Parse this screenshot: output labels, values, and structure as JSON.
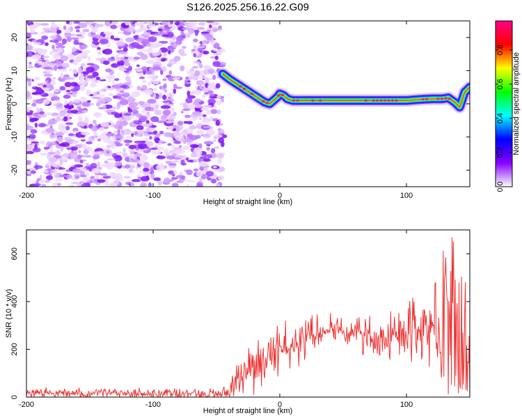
{
  "title": "S126.2025.256.16.22.G09",
  "chart_data": [
    {
      "type": "heatmap",
      "title": "S126.2025.256.16.22.G09",
      "xlabel": "Height of straight line (km)",
      "ylabel": "Frequency (Hz)",
      "xlim": [
        -200,
        150
      ],
      "ylim": [
        -25,
        25
      ],
      "x_ticks": [
        -200,
        -100,
        0,
        100
      ],
      "y_ticks": [
        -20,
        -10,
        0,
        10,
        20
      ],
      "noise_region_x": [
        -200,
        -45
      ],
      "ridge": {
        "x": [
          -45,
          -40,
          -36,
          -32,
          -28,
          -24,
          -20,
          -16,
          -12,
          -8,
          -5,
          -2,
          0,
          3,
          6,
          10,
          20,
          40,
          60,
          80,
          100,
          110,
          120,
          128,
          133,
          138,
          142,
          146,
          150
        ],
        "y": [
          9,
          7.5,
          6.5,
          5.5,
          4.5,
          3.5,
          2.5,
          1.5,
          0.5,
          0,
          1,
          2,
          3,
          2.5,
          1.5,
          1,
          1,
          1,
          1,
          1,
          1,
          1.3,
          1.5,
          1.5,
          1.8,
          0.5,
          -1,
          3.5,
          5
        ]
      },
      "colorbar": {
        "label": "Normalized spectral amplitude",
        "ticks": [
          0,
          0.2,
          0.4,
          0.6,
          0.8
        ],
        "tick_labels": [
          "0.0",
          "0.2",
          "0.4",
          "0.6",
          "0.8"
        ],
        "colors": [
          "#ffffff",
          "#8800ff",
          "#0000ff",
          "#00ffff",
          "#00ff00",
          "#ffff00",
          "#ff0000",
          "#ff0088"
        ]
      }
    },
    {
      "type": "line",
      "xlabel": "Height of straight line (km)",
      "ylabel": "SNR (10 * v/v)",
      "xlim": [
        -200,
        150
      ],
      "ylim": [
        0,
        700
      ],
      "x_ticks": [
        -200,
        -100,
        0,
        100
      ],
      "y_ticks": [
        0,
        200,
        400,
        600
      ],
      "color": "#ee3333",
      "trend": {
        "x": [
          -200,
          -40,
          -35,
          -30,
          -20,
          -10,
          0,
          10,
          20,
          30,
          40,
          50,
          60,
          70,
          80,
          90,
          100,
          110,
          120,
          130,
          140,
          150
        ],
        "y": [
          15,
          15,
          60,
          110,
          150,
          175,
          190,
          220,
          260,
          270,
          280,
          275,
          265,
          250,
          245,
          255,
          275,
          300,
          310,
          300,
          270,
          240
        ]
      },
      "spread": {
        "x": [
          -200,
          -40,
          -30,
          -10,
          10,
          40,
          80,
          100,
          120,
          130,
          140,
          150
        ],
        "y": [
          10,
          12,
          60,
          55,
          45,
          30,
          40,
          60,
          90,
          140,
          220,
          200
        ]
      }
    }
  ]
}
